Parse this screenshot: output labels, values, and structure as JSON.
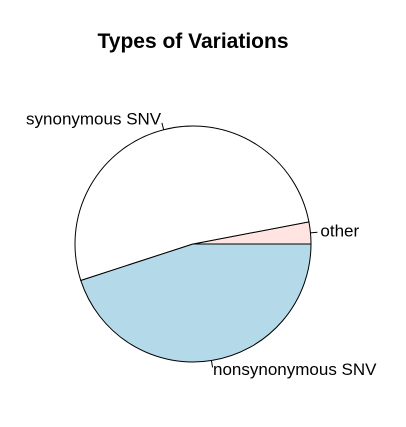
{
  "chart_data": {
    "type": "pie",
    "title": "Types of Variations",
    "slices": [
      {
        "label": "other",
        "value": 0.03,
        "color": "#ffe4e1"
      },
      {
        "label": "synonymous SNV",
        "value": 0.52,
        "color": "#ffffff"
      },
      {
        "label": "nonsynonymous SNV",
        "value": 0.45,
        "color": "#b4d9e8"
      }
    ],
    "start_angle_deg": 0,
    "direction": "counterclockwise",
    "border_color": "#000000"
  }
}
